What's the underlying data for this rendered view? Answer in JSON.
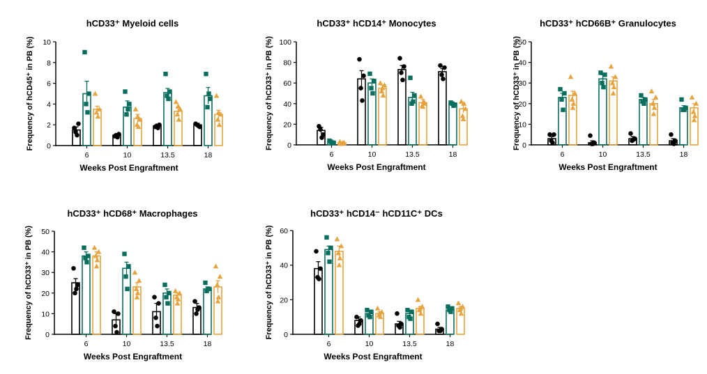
{
  "colors": {
    "black_group": "#000000",
    "green_group": "#0a6e5e",
    "orange_group": "#e6a33e"
  },
  "chart_data": [
    {
      "type": "bar",
      "title": "hCD33⁺ Myeloid cells",
      "xlabel": "Weeks Post Engraftment",
      "ylabel": "Frequency of hCD45⁺ in PB (%)",
      "categories": [
        "6",
        "10",
        "13.5",
        "18"
      ],
      "ylim": [
        0,
        10
      ],
      "yticks": [
        0,
        2,
        4,
        6,
        8,
        10
      ],
      "series": [
        {
          "color": "#000000",
          "marker": "circle",
          "values": [
            1.5,
            1.0,
            1.9,
            2.0
          ],
          "errors": [
            0.3,
            0.1,
            0.1,
            0.15
          ],
          "points": [
            [
              1.7,
              2.1,
              1.3,
              1.0
            ],
            [
              0.9,
              1.1,
              1.0,
              0.8
            ],
            [
              1.8,
              2.0,
              1.9,
              1.7
            ],
            [
              2.1,
              1.8,
              2.0,
              1.9
            ]
          ]
        },
        {
          "color": "#0a6e5e",
          "marker": "square",
          "values": [
            5.0,
            3.7,
            5.1,
            4.8
          ],
          "errors": [
            1.2,
            0.6,
            0.4,
            0.8
          ],
          "points": [
            [
              9.0,
              5.0,
              4.0,
              3.2
            ],
            [
              5.2,
              4.0,
              3.0,
              3.5
            ],
            [
              6.9,
              5.2,
              4.8,
              4.5
            ],
            [
              6.9,
              4.5,
              3.7,
              5.0
            ]
          ]
        },
        {
          "color": "#e6a33e",
          "marker": "triangle",
          "values": [
            3.5,
            2.6,
            3.3,
            3.0
          ],
          "errors": [
            0.3,
            0.4,
            0.3,
            0.4
          ],
          "points": [
            [
              5.0,
              3.5,
              3.2,
              2.8
            ],
            [
              3.5,
              2.5,
              2.0,
              1.8,
              2.8
            ],
            [
              4.2,
              3.5,
              3.0,
              2.5,
              3.8
            ],
            [
              4.8,
              3.0,
              2.5,
              2.0,
              3.2
            ]
          ]
        }
      ]
    },
    {
      "type": "bar",
      "title": "hCD33⁺ hCD14⁺ Monocytes",
      "xlabel": "Weeks Post Engraftment",
      "ylabel": "Frequency of hCD33⁺ in PB (%)",
      "categories": [
        "6",
        "10",
        "13.5",
        "18"
      ],
      "ylim": [
        0,
        100
      ],
      "yticks": [
        0,
        20,
        40,
        60,
        80,
        100
      ],
      "series": [
        {
          "color": "#000000",
          "marker": "circle",
          "values": [
            14,
            64,
            73,
            71
          ],
          "errors": [
            3,
            8,
            4,
            3
          ],
          "points": [
            [
              18,
              10,
              15,
              7
            ],
            [
              83,
              67,
              55,
              43
            ],
            [
              84,
              76,
              70,
              63
            ],
            [
              77,
              75,
              68,
              64
            ]
          ]
        },
        {
          "color": "#0a6e5e",
          "marker": "square",
          "values": [
            3,
            60,
            46,
            40
          ],
          "errors": [
            1,
            4,
            5,
            1
          ],
          "points": [
            [
              4,
              2,
              3,
              2
            ],
            [
              69,
              62,
              55,
              50
            ],
            [
              65,
              48,
              40,
              42
            ],
            [
              41,
              39,
              40,
              38
            ]
          ]
        },
        {
          "color": "#e6a33e",
          "marker": "triangle",
          "values": [
            2,
            55,
            41,
            35
          ],
          "errors": [
            0.5,
            3,
            3,
            4
          ],
          "points": [
            [
              3,
              2,
              1,
              2
            ],
            [
              60,
              58,
              52,
              48,
              55
            ],
            [
              47,
              40,
              38,
              42,
              37
            ],
            [
              42,
              35,
              28,
              40,
              25
            ]
          ]
        }
      ]
    },
    {
      "type": "bar",
      "title": "hCD33⁺ hCD66B⁺ Granulocytes",
      "xlabel": "Weeks Post Engraftment",
      "ylabel": "Frequency of hCD33⁺ in PB (%)",
      "categories": [
        "6",
        "10",
        "13.5",
        "18"
      ],
      "ylim": [
        0,
        50
      ],
      "yticks": [
        0,
        10,
        20,
        30,
        40,
        50
      ],
      "series": [
        {
          "color": "#000000",
          "marker": "circle",
          "values": [
            3,
            1,
            3,
            2
          ],
          "errors": [
            1,
            1,
            1,
            1
          ],
          "points": [
            [
              5,
              5,
              2,
              1
            ],
            [
              4.5,
              1,
              0.5,
              0.5
            ],
            [
              5.5,
              3,
              2,
              2.5
            ],
            [
              5,
              2,
              1,
              0.5
            ]
          ]
        },
        {
          "color": "#0a6e5e",
          "marker": "square",
          "values": [
            23,
            32,
            22,
            18
          ],
          "errors": [
            2,
            2,
            1,
            1
          ],
          "points": [
            [
              27,
              25,
              22,
              17
            ],
            [
              35,
              34,
              30,
              28
            ],
            [
              24,
              22,
              21,
              20
            ],
            [
              22,
              18,
              17,
              17
            ]
          ]
        },
        {
          "color": "#e6a33e",
          "marker": "triangle",
          "values": [
            24,
            31,
            20,
            18
          ],
          "errors": [
            2,
            2,
            2,
            2
          ],
          "points": [
            [
              33,
              25,
              22,
              20,
              18
            ],
            [
              38,
              33,
              30,
              28,
              25
            ],
            [
              26,
              23,
              20,
              18,
              15
            ],
            [
              23,
              20,
              16,
              14,
              12
            ]
          ]
        }
      ]
    },
    {
      "type": "bar",
      "title": "hCD33⁺ hCD68⁺ Macrophages",
      "xlabel": "Weeks Post Engraftment",
      "ylabel": "Frequency of hCD33⁺ in PB (%)",
      "categories": [
        "6",
        "10",
        "13.5",
        "18"
      ],
      "ylim": [
        0,
        50
      ],
      "yticks": [
        0,
        10,
        20,
        30,
        40,
        50
      ],
      "series": [
        {
          "color": "#000000",
          "marker": "circle",
          "values": [
            25,
            7,
            11,
            13
          ],
          "errors": [
            2,
            3,
            4,
            2
          ],
          "points": [
            [
              32,
              24,
              20,
              22
            ],
            [
              11,
              10,
              4,
              1
            ],
            [
              18,
              15,
              8,
              4
            ],
            [
              16,
              13,
              10,
              12
            ]
          ]
        },
        {
          "color": "#0a6e5e",
          "marker": "square",
          "values": [
            38,
            32,
            20,
            22
          ],
          "errors": [
            2,
            3,
            2,
            1
          ],
          "points": [
            [
              42,
              38,
              37,
              35
            ],
            [
              39,
              33,
              28,
              22
            ],
            [
              24,
              20,
              18,
              15
            ],
            [
              25,
              22,
              21,
              22
            ]
          ]
        },
        {
          "color": "#e6a33e",
          "marker": "triangle",
          "values": [
            38,
            23,
            19,
            23
          ],
          "errors": [
            2,
            2,
            1,
            3
          ],
          "points": [
            [
              42,
              40,
              38,
              36,
              33
            ],
            [
              30,
              26,
              22,
              20,
              18
            ],
            [
              21,
              20,
              18,
              17,
              15
            ],
            [
              33,
              28,
              24,
              18,
              16
            ]
          ]
        }
      ]
    },
    {
      "type": "bar",
      "title": "hCD33⁺ hCD14⁻ hCD11C⁺ DCs",
      "xlabel": "Weeks Post Engraftment",
      "ylabel": "Frequency of hCD33⁺ in PB (%)",
      "categories": [
        "6",
        "10",
        "13.5",
        "18"
      ],
      "ylim": [
        0,
        60
      ],
      "yticks": [
        0,
        20,
        40,
        60
      ],
      "series": [
        {
          "color": "#000000",
          "marker": "circle",
          "values": [
            38,
            8,
            6,
            3
          ],
          "errors": [
            4,
            2,
            1.5,
            1
          ],
          "points": [
            [
              48,
              38,
              33,
              32
            ],
            [
              10,
              8,
              5,
              6
            ],
            [
              12,
              6,
              5,
              4
            ],
            [
              6,
              3,
              2,
              2
            ]
          ]
        },
        {
          "color": "#0a6e5e",
          "marker": "square",
          "values": [
            49,
            12,
            12,
            14
          ],
          "errors": [
            2,
            1,
            1,
            1
          ],
          "points": [
            [
              56,
              50,
              47,
              42
            ],
            [
              14,
              13,
              11,
              10
            ],
            [
              14,
              13,
              10,
              9
            ],
            [
              16,
              15,
              14,
              13
            ]
          ]
        },
        {
          "color": "#e6a33e",
          "marker": "triangle",
          "values": [
            48,
            12,
            15,
            15
          ],
          "errors": [
            3,
            1,
            1,
            1
          ],
          "points": [
            [
              55,
              51,
              47,
              44,
              40
            ],
            [
              15,
              13,
              11,
              10,
              12
            ],
            [
              20,
              16,
              14,
              12,
              15
            ],
            [
              18,
              16,
              14,
              12,
              15
            ]
          ]
        }
      ]
    }
  ]
}
